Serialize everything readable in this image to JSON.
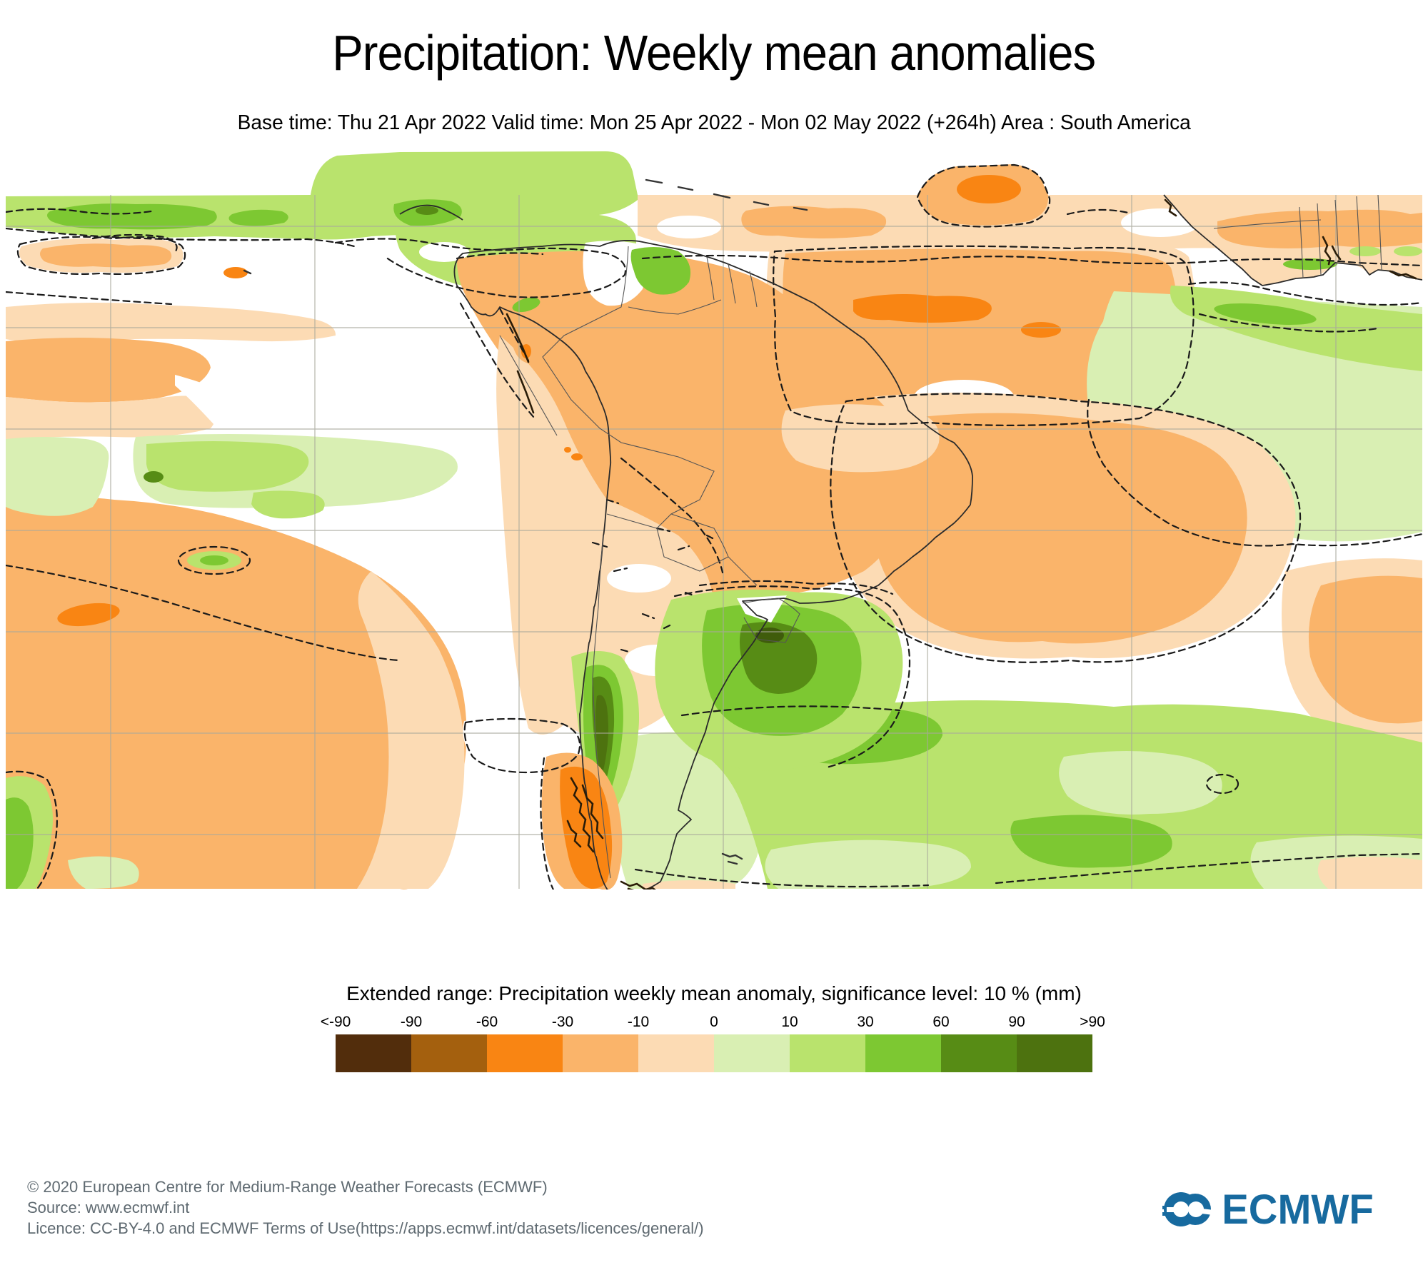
{
  "header": {
    "title": "Precipitation: Weekly mean anomalies",
    "subtitle": "Base time: Thu 21 Apr 2022 Valid time: Mon 25 Apr 2022 - Mon 02 May 2022 (+264h) Area : South America"
  },
  "map": {
    "area": "South America",
    "gridline_color": "#a9a99b",
    "negative_anomaly_colors": [
      "#522d0c",
      "#a4600e",
      "#f98513",
      "#fab46a",
      "#fcdbb4"
    ],
    "positive_anomaly_colors": [
      "#d9efb3",
      "#b9e36d",
      "#7dc832",
      "#578c15",
      "#4d720f"
    ]
  },
  "legend": {
    "title": "Extended range: Precipitation weekly mean anomaly, significance level: 10 % (mm)",
    "tick_labels": [
      "<-90",
      "-90",
      "-60",
      "-30",
      "-10",
      "0",
      "10",
      "30",
      "60",
      "90",
      ">90"
    ],
    "segment_colors": [
      "#522d0c",
      "#a4600e",
      "#f98513",
      "#fab46a",
      "#fcdbb4",
      "#d9efb3",
      "#b9e36d",
      "#7dc832",
      "#578c15",
      "#4d720f"
    ]
  },
  "footer": {
    "copyright": "© 2020 European Centre for Medium-Range Weather Forecasts (ECMWF)",
    "source": "Source: www.ecmwf.int",
    "licence": "Licence: CC-BY-4.0 and ECMWF Terms of Use(https://apps.ecmwf.int/datasets/licences/general/)"
  },
  "logo": {
    "text": "ECMWF",
    "color": "#176a9f"
  }
}
